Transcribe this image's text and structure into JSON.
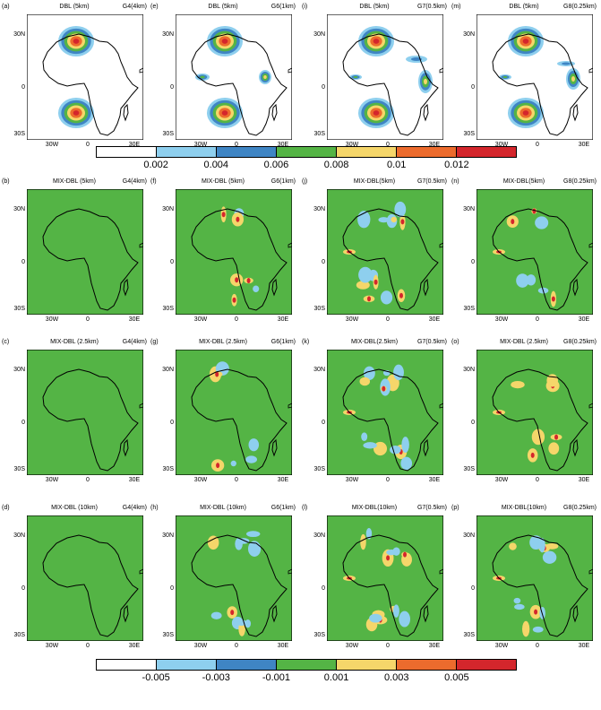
{
  "panels": [
    {
      "label": "(a)",
      "title": "DBL (5km)",
      "res": "G4(4km)",
      "field": "dbl"
    },
    {
      "label": "(e)",
      "title": "DBL (5km)",
      "res": "G6(1km)",
      "field": "dbl"
    },
    {
      "label": "(i)",
      "title": "DBL (5km)",
      "res": "G7(0.5km)",
      "field": "dbl"
    },
    {
      "label": "(m)",
      "title": "DBL (5km)",
      "res": "G8(0.25km)",
      "field": "dbl"
    },
    {
      "label": "(b)",
      "title": "MIX-DBL (5km)",
      "res": "G4(4km)",
      "field": "diff"
    },
    {
      "label": "(f)",
      "title": "MIX-DBL (5km)",
      "res": "G6(1km)",
      "field": "diff"
    },
    {
      "label": "(j)",
      "title": "MIX-DBL(5km)",
      "res": "G7(0.5km)",
      "field": "diff"
    },
    {
      "label": "(n)",
      "title": "MIX-DBL(5km)",
      "res": "G8(0.25km)",
      "field": "diff"
    },
    {
      "label": "(c)",
      "title": "MIX-DBL (2.5km)",
      "res": "G4(4km)",
      "field": "diff"
    },
    {
      "label": "(g)",
      "title": "MIX-DBL (2.5km)",
      "res": "G6(1km)",
      "field": "diff"
    },
    {
      "label": "(k)",
      "title": "MIX-DBL(2.5km)",
      "res": "G7(0.5km)",
      "field": "diff"
    },
    {
      "label": "(o)",
      "title": "MIX-DBL (2.5km)",
      "res": "G8(0.25km)",
      "field": "diff"
    },
    {
      "label": "(d)",
      "title": "MIX-DBL (10km)",
      "res": "G4(4km)",
      "field": "diff"
    },
    {
      "label": "(h)",
      "title": "MIX-DBL (10km)",
      "res": "G6(1km)",
      "field": "diff"
    },
    {
      "label": "(l)",
      "title": "MIX-DBL(10km)",
      "res": "G7(0.5km)",
      "field": "diff"
    },
    {
      "label": "(p)",
      "title": "MIX-DBL(10km)",
      "res": "G8(0.25km)",
      "field": "diff"
    }
  ],
  "axes": {
    "lon_ticks": [
      "30W",
      "0",
      "30E"
    ],
    "lat_ticks": [
      "30N",
      "0",
      "30S"
    ]
  },
  "colorbar_top": {
    "ticks": [
      "0.002",
      "0.004",
      "0.006",
      "0.008",
      "0.01",
      "0.012"
    ],
    "colors": [
      "#ffffff",
      "#8ecfee",
      "#3f85c4",
      "#54b445",
      "#f5d66a",
      "#ec6b2d",
      "#d4262c"
    ]
  },
  "colorbar_bottom": {
    "ticks": [
      "-0.005",
      "-0.003",
      "-0.001",
      "0.001",
      "0.003",
      "0.005"
    ],
    "colors": [
      "#ffffff",
      "#8ecfee",
      "#3f85c4",
      "#54b445",
      "#f5d66a",
      "#ec6b2d",
      "#d4262c"
    ]
  }
}
